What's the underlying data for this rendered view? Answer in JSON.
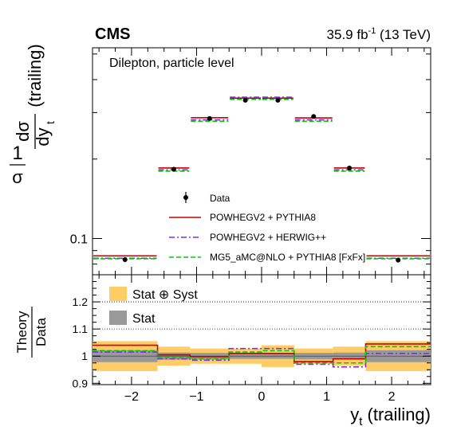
{
  "header": {
    "experiment": "CMS",
    "lumi": "35.9 fb",
    "lumi_exp": "-1",
    "energy": " (13 TeV)"
  },
  "chart_data": [
    {
      "type": "line",
      "title": "",
      "annotation": "Dilepton, particle level",
      "ylabel": "1/σ dσ/dy_t (trailing)",
      "yscale": "log",
      "ylim": [
        0.0729,
        0.528
      ],
      "y_ticks": [
        {
          "value": 0.1,
          "label": "0.1"
        }
      ],
      "bin_edges": [
        -2.6,
        -1.6,
        -1.1,
        -0.5,
        0,
        0.5,
        1.1,
        1.6,
        2.6
      ],
      "bin_centers": [
        -2.1,
        -1.35,
        -0.8,
        -0.25,
        0.25,
        0.8,
        1.35,
        2.1
      ],
      "data": {
        "name": "Data",
        "values": [
          0.0832,
          0.183,
          0.285,
          0.334,
          0.334,
          0.29,
          0.185,
          0.0828
        ],
        "errors": [
          0.0018,
          0.0025,
          0.0032,
          0.0035,
          0.0035,
          0.0032,
          0.0025,
          0.0017
        ]
      },
      "series": [
        {
          "name": "POWHEGV2 + PYTHIA8",
          "color": "#cc0000",
          "dash": "solid",
          "values": [
            0.0852,
            0.1835,
            0.2845,
            0.3375,
            0.3375,
            0.284,
            0.1835,
            0.0852
          ]
        },
        {
          "name": "POWHEGV2 + HERWIG++",
          "color": "#8a2be2",
          "dash": "dashdot",
          "values": [
            0.0842,
            0.182,
            0.2815,
            0.343,
            0.343,
            0.2815,
            0.182,
            0.0842
          ]
        },
        {
          "name": "MG5_aMC@NLO + PYTHIA8 [FxFx]",
          "color": "#00cc00",
          "dash": "dashed",
          "values": [
            0.0845,
            0.1815,
            0.2805,
            0.3395,
            0.3395,
            0.2805,
            0.1815,
            0.0845
          ]
        }
      ],
      "legend_placement": "center-right"
    },
    {
      "type": "line",
      "ylabel_num": "Theory",
      "ylabel_den": "Data",
      "xlabel": "y",
      "xlabel_sub": "t",
      "xlabel_suffix": " (trailing)",
      "ylim": [
        0.895,
        1.3
      ],
      "xlim": [
        -2.6,
        2.6
      ],
      "x_ticks": [
        {
          "value": -2,
          "label": "−2"
        },
        {
          "value": -1,
          "label": "−1"
        },
        {
          "value": 0,
          "label": "0"
        },
        {
          "value": 1,
          "label": "1"
        },
        {
          "value": 2,
          "label": "2"
        }
      ],
      "y_ticks": [
        {
          "value": 0.9,
          "label": "0.9"
        },
        {
          "value": 1.0,
          "label": "1"
        },
        {
          "value": 1.1,
          "label": "1.1"
        },
        {
          "value": 1.2,
          "label": "1.2"
        }
      ],
      "reference_lines": [
        1.1,
        1.2
      ],
      "bands": [
        {
          "name": "Stat ⊕ Syst",
          "color": "#ffcc66",
          "half_widths": [
            0.055,
            0.035,
            0.028,
            0.028,
            0.04,
            0.028,
            0.035,
            0.055
          ]
        },
        {
          "name": "Stat",
          "color": "#999999",
          "half_widths": [
            0.022,
            0.013,
            0.012,
            0.01,
            0.01,
            0.012,
            0.013,
            0.022
          ]
        }
      ],
      "series": [
        {
          "name": "POWHEGV2 + PYTHIA8",
          "color": "#cc0000",
          "dash": "solid",
          "values": [
            1.04,
            1.005,
            0.998,
            1.01,
            1.01,
            0.98,
            0.99,
            1.045
          ]
        },
        {
          "name": "POWHEGV2 + HERWIG++",
          "color": "#8a2be2",
          "dash": "dashdot",
          "values": [
            1.015,
            0.99,
            0.985,
            1.028,
            1.028,
            0.97,
            0.96,
            1.01
          ]
        },
        {
          "name": "MG5_aMC@NLO + PYTHIA8 [FxFx]",
          "color": "#00cc00",
          "dash": "dashed",
          "values": [
            1.02,
            0.995,
            0.99,
            1.015,
            1.02,
            0.975,
            0.975,
            1.035
          ]
        }
      ],
      "legend_placement": "top-left"
    }
  ]
}
